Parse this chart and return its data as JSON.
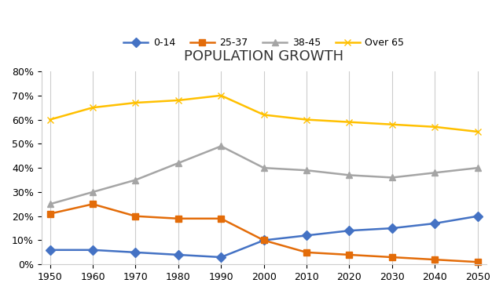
{
  "title": "POPULATION GROWTH",
  "years": [
    1950,
    1960,
    1970,
    1980,
    1990,
    2000,
    2010,
    2020,
    2030,
    2040,
    2050
  ],
  "series": {
    "0-14": {
      "values": [
        6,
        6,
        5,
        4,
        3,
        10,
        12,
        14,
        15,
        17,
        20
      ],
      "color": "#4472C4",
      "marker": "D",
      "label": "0-14"
    },
    "25-37": {
      "values": [
        21,
        25,
        20,
        19,
        19,
        10,
        5,
        4,
        3,
        2,
        1
      ],
      "color": "#E36C09",
      "marker": "s",
      "label": "25-37"
    },
    "38-45": {
      "values": [
        25,
        30,
        35,
        42,
        49,
        40,
        39,
        37,
        36,
        38,
        40
      ],
      "color": "#A5A5A5",
      "marker": "^",
      "label": "38-45"
    },
    "Over 65": {
      "values": [
        60,
        65,
        67,
        68,
        70,
        62,
        60,
        59,
        58,
        57,
        55
      ],
      "color": "#FFC000",
      "marker": "x",
      "label": "Over 65"
    }
  },
  "ylim": [
    0,
    80
  ],
  "yticks": [
    0,
    10,
    20,
    30,
    40,
    50,
    60,
    70,
    80
  ],
  "background_color": "#ffffff",
  "plot_bg_color": "#ffffff",
  "title_fontsize": 13,
  "legend_fontsize": 9,
  "tick_fontsize": 9,
  "linewidth": 1.8,
  "markersize": 6
}
